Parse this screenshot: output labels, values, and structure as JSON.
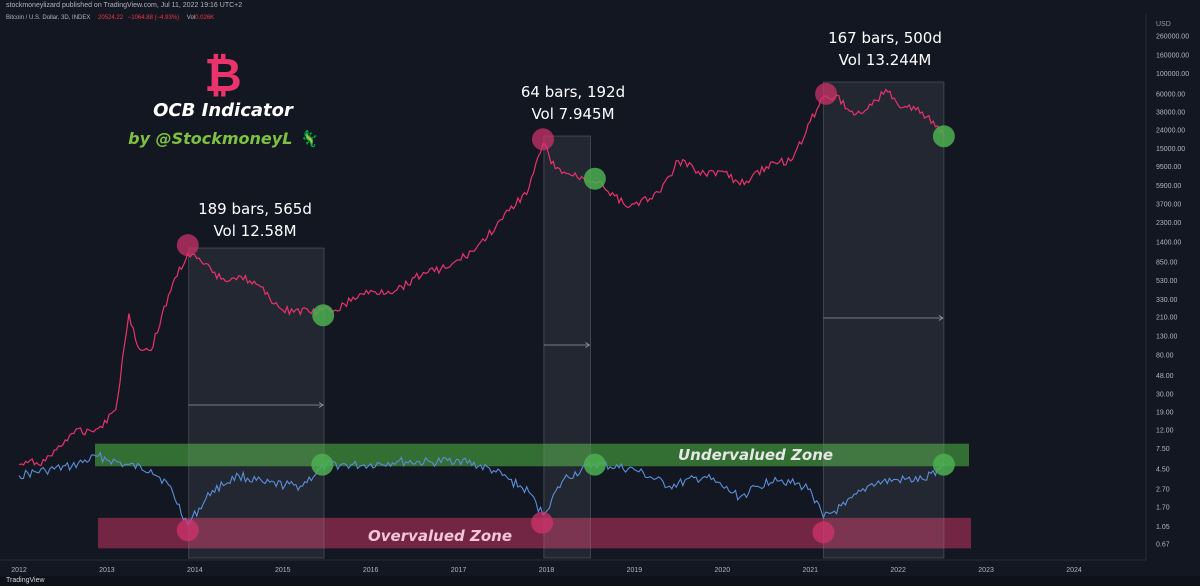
{
  "header": {
    "publisher_line": "stockmoneylizard published on TradingView.com, Jul 11, 2022 19:16 UTC+2",
    "symbol": "Bitcoin / U.S. Dollar, 3D, INDEX",
    "price": "20524.22",
    "change": "−1064.88 (−4.93%)",
    "vol_label": "Vol",
    "vol_value": "0.026K"
  },
  "footer": {
    "brand": "TradingView"
  },
  "title": {
    "logo": "₿",
    "name": "OCB Indicator",
    "author": "by @StockmoneyL 🦎"
  },
  "stats": [
    {
      "bars": "189 bars, 565d",
      "vol": "Vol 12.58M"
    },
    {
      "bars": "64 bars, 192d",
      "vol": "Vol 7.945M"
    },
    {
      "bars": "167 bars, 500d",
      "vol": "Vol 13.244M"
    }
  ],
  "zones": {
    "undervalued": "Undervalued Zone",
    "overvalued": "Overvalued Zone"
  },
  "colors": {
    "background": "#131722",
    "price_line": "#e8336b",
    "indicator_line": "#5b8ed8",
    "undervalued_zone": "#3f8c3a",
    "overvalued_zone": "#8c2a4c",
    "green_marker": "#4caf50",
    "pink_marker": "#d6336c"
  },
  "chart_data": {
    "type": "line",
    "y_scale": "log",
    "ylabel": "USD",
    "y_ticks": [
      "260000.00",
      "160000.00",
      "100000.00",
      "60000.00",
      "38000.00",
      "24000.00",
      "15000.00",
      "9500.00",
      "5900.00",
      "3700.00",
      "2300.00",
      "1400.00",
      "850.00",
      "530.00",
      "330.00",
      "210.00",
      "130.00",
      "80.00",
      "48.00",
      "30.00",
      "19.00",
      "12.00",
      "7.50",
      "4.50",
      "2.70",
      "1.70",
      "1.05",
      "0.67"
    ],
    "x_ticks": [
      "2012",
      "2013",
      "2014",
      "2015",
      "2016",
      "2017",
      "2018",
      "2019",
      "2020",
      "2021",
      "2022",
      "2023",
      "2024"
    ],
    "xlim": [
      2012.0,
      2024.5
    ],
    "series": [
      {
        "role": "price",
        "x": [
          2012.0,
          2012.3,
          2012.6,
          2012.9,
          2013.1,
          2013.25,
          2013.35,
          2013.5,
          2013.75,
          2013.92,
          2014.1,
          2014.3,
          2014.5,
          2014.7,
          2015.0,
          2015.3,
          2015.6,
          2015.9,
          2016.3,
          2016.6,
          2016.9,
          2017.2,
          2017.5,
          2017.8,
          2017.96,
          2018.1,
          2018.3,
          2018.6,
          2018.9,
          2019.0,
          2019.3,
          2019.5,
          2019.8,
          2020.0,
          2020.2,
          2020.5,
          2020.8,
          2021.0,
          2021.15,
          2021.3,
          2021.5,
          2021.7,
          2021.86,
          2022.0,
          2022.2,
          2022.4,
          2022.52
        ],
        "y": [
          5,
          5.5,
          11,
          12.5,
          20,
          230,
          100,
          90,
          500,
          1050,
          800,
          550,
          600,
          480,
          250,
          240,
          250,
          380,
          420,
          650,
          750,
          1200,
          2500,
          5500,
          17000,
          9000,
          7500,
          6500,
          3500,
          3700,
          5000,
          11000,
          8000,
          8500,
          6000,
          9500,
          11500,
          30000,
          55000,
          58000,
          35000,
          45000,
          67000,
          45000,
          40000,
          30000,
          20500
        ]
      },
      {
        "role": "indicator",
        "x": [
          2012.0,
          2012.3,
          2012.6,
          2012.9,
          2013.2,
          2013.5,
          2013.7,
          2013.92,
          2014.2,
          2014.5,
          2014.8,
          2015.2,
          2015.5,
          2015.9,
          2016.3,
          2016.7,
          2017.0,
          2017.4,
          2017.8,
          2017.96,
          2018.2,
          2018.55,
          2019.0,
          2019.4,
          2019.8,
          2020.2,
          2020.6,
          2021.0,
          2021.15,
          2021.4,
          2021.7,
          2022.0,
          2022.3,
          2022.52
        ],
        "y": [
          3.8,
          4.3,
          4.8,
          6.2,
          5,
          4.4,
          3,
          1.1,
          2.6,
          3.8,
          3.1,
          2.9,
          5,
          4.9,
          5.4,
          5.3,
          5.7,
          4.3,
          2.5,
          1.4,
          3.5,
          5.1,
          4.4,
          2.9,
          3.7,
          2.2,
          3.6,
          2.7,
          1.3,
          1.8,
          3.1,
          3.4,
          3.4,
          5
        ]
      }
    ],
    "zones": [
      {
        "name": "Undervalued Zone",
        "y_range": [
          4.8,
          8.5
        ]
      },
      {
        "name": "Overvalued Zone",
        "y_range": [
          0.6,
          1.3
        ]
      }
    ],
    "cycles": [
      {
        "x_range": [
          2013.93,
          2015.47
        ],
        "bars": 189,
        "days": 565,
        "vol": "12.58M"
      },
      {
        "x_range": [
          2017.97,
          2018.5
        ],
        "bars": 64,
        "days": 192,
        "vol": "7.945M"
      },
      {
        "x_range": [
          2021.15,
          2022.52
        ],
        "bars": 167,
        "days": 500,
        "vol": "13.244M"
      }
    ],
    "markers": [
      {
        "x": 2013.92,
        "y": 1300,
        "series": "price",
        "color": "pink"
      },
      {
        "x": 2015.46,
        "y": 220,
        "series": "price",
        "color": "green"
      },
      {
        "x": 2017.96,
        "y": 19000,
        "series": "price",
        "color": "pink"
      },
      {
        "x": 2018.55,
        "y": 7000,
        "series": "price",
        "color": "green"
      },
      {
        "x": 2021.18,
        "y": 60000,
        "series": "price",
        "color": "pink"
      },
      {
        "x": 2022.52,
        "y": 20500,
        "series": "price",
        "color": "green"
      },
      {
        "x": 2013.92,
        "y": 0.95,
        "series": "indicator",
        "color": "pink"
      },
      {
        "x": 2015.45,
        "y": 5,
        "series": "indicator",
        "color": "green"
      },
      {
        "x": 2017.95,
        "y": 1.15,
        "series": "indicator",
        "color": "pink"
      },
      {
        "x": 2018.55,
        "y": 5,
        "series": "indicator",
        "color": "green"
      },
      {
        "x": 2021.15,
        "y": 0.9,
        "series": "indicator",
        "color": "pink"
      },
      {
        "x": 2022.52,
        "y": 5,
        "series": "indicator",
        "color": "green"
      }
    ]
  }
}
